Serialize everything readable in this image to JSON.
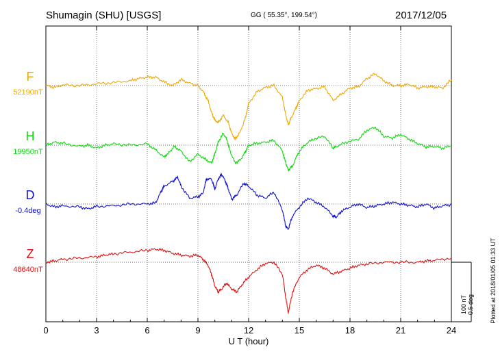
{
  "header": {
    "station": "Shumagin (SHU)  [USGS]",
    "coords": "GG ( 55.35°, 199.54°)",
    "date": "2017/12/05"
  },
  "footer": {
    "plotted": "Plotted at 2018/01/05 01:33 UT",
    "scale_nt": "100 nT",
    "scale_deg": "0.5 deg"
  },
  "chart_data": {
    "type": "line",
    "title": "Shumagin (SHU)  [USGS]",
    "xlabel": "U T (hour)",
    "ylabel": "",
    "xlim": [
      0,
      24
    ],
    "xticks": [
      0,
      3,
      6,
      9,
      12,
      15,
      18,
      21,
      24
    ],
    "grid": true,
    "scale": {
      "nT_per_bar": 100,
      "deg_per_bar": 0.5
    },
    "series": [
      {
        "name": "F",
        "baseline_label": "52190nT",
        "color": "#f0a800",
        "unit": "nT",
        "points": [
          [
            0,
            0
          ],
          [
            0.5,
            -3
          ],
          [
            1,
            1
          ],
          [
            2,
            0
          ],
          [
            3,
            3
          ],
          [
            4,
            5
          ],
          [
            5,
            8
          ],
          [
            5.5,
            12
          ],
          [
            6,
            14
          ],
          [
            6.5,
            14
          ],
          [
            7,
            6
          ],
          [
            7.5,
            0
          ],
          [
            8,
            10
          ],
          [
            8.5,
            4
          ],
          [
            9,
            0
          ],
          [
            9.3,
            -10
          ],
          [
            9.6,
            -25
          ],
          [
            9.8,
            -45
          ],
          [
            10,
            -58
          ],
          [
            10.2,
            -62
          ],
          [
            10.5,
            -50
          ],
          [
            10.8,
            -62
          ],
          [
            11,
            -80
          ],
          [
            11.2,
            -90
          ],
          [
            11.5,
            -78
          ],
          [
            11.8,
            -55
          ],
          [
            12,
            -30
          ],
          [
            12.5,
            -10
          ],
          [
            13,
            -3
          ],
          [
            13.5,
            0
          ],
          [
            14,
            -20
          ],
          [
            14.2,
            -50
          ],
          [
            14.35,
            -66
          ],
          [
            14.5,
            -55
          ],
          [
            14.8,
            -38
          ],
          [
            15,
            -25
          ],
          [
            15.5,
            -8
          ],
          [
            16,
            -5
          ],
          [
            16.5,
            -2
          ],
          [
            17,
            -25
          ],
          [
            17.5,
            -14
          ],
          [
            18,
            -4
          ],
          [
            18.5,
            -2
          ],
          [
            19,
            12
          ],
          [
            19.5,
            20
          ],
          [
            20,
            8
          ],
          [
            20.5,
            0
          ],
          [
            21,
            0
          ],
          [
            21.5,
            2
          ],
          [
            22,
            -4
          ],
          [
            22.5,
            -2
          ],
          [
            23,
            -2
          ],
          [
            23.5,
            -4
          ],
          [
            24,
            10
          ]
        ]
      },
      {
        "name": "H",
        "baseline_label": "19950nT",
        "color": "#10d810",
        "unit": "nT",
        "points": [
          [
            0,
            0
          ],
          [
            0.5,
            5
          ],
          [
            1,
            3
          ],
          [
            2,
            -2
          ],
          [
            2.5,
            0
          ],
          [
            3,
            -5
          ],
          [
            3.5,
            0
          ],
          [
            4,
            2
          ],
          [
            5,
            0
          ],
          [
            6,
            2
          ],
          [
            6.5,
            -8
          ],
          [
            7,
            -20
          ],
          [
            7.3,
            -12
          ],
          [
            7.6,
            -2
          ],
          [
            8,
            -10
          ],
          [
            8.5,
            -28
          ],
          [
            9,
            -15
          ],
          [
            9.5,
            -25
          ],
          [
            9.8,
            -30
          ],
          [
            10,
            -15
          ],
          [
            10.2,
            5
          ],
          [
            10.5,
            20
          ],
          [
            10.7,
            10
          ],
          [
            10.9,
            -10
          ],
          [
            11.2,
            -30
          ],
          [
            11.5,
            -25
          ],
          [
            11.8,
            -12
          ],
          [
            12,
            0
          ],
          [
            12.5,
            3
          ],
          [
            13,
            5
          ],
          [
            13.5,
            8
          ],
          [
            14,
            -10
          ],
          [
            14.2,
            -30
          ],
          [
            14.35,
            -42
          ],
          [
            14.6,
            -35
          ],
          [
            14.9,
            -15
          ],
          [
            15.3,
            0
          ],
          [
            15.8,
            10
          ],
          [
            16.5,
            15
          ],
          [
            17,
            -5
          ],
          [
            17.2,
            -2
          ],
          [
            17.8,
            5
          ],
          [
            18.5,
            10
          ],
          [
            19,
            25
          ],
          [
            19.5,
            30
          ],
          [
            20,
            15
          ],
          [
            20.5,
            12
          ],
          [
            21,
            18
          ],
          [
            21.5,
            10
          ],
          [
            22,
            3
          ],
          [
            22.5,
            -3
          ],
          [
            23,
            -2
          ],
          [
            23.5,
            -5
          ],
          [
            24,
            -1
          ]
        ]
      },
      {
        "name": "D",
        "baseline_label": "-0.4deg",
        "color": "#1010d0",
        "unit": "deg",
        "points": [
          [
            0,
            0
          ],
          [
            0.5,
            -5
          ],
          [
            1,
            -3
          ],
          [
            2,
            -5
          ],
          [
            2.5,
            -8
          ],
          [
            3,
            -4
          ],
          [
            4,
            -3
          ],
          [
            5,
            0
          ],
          [
            6,
            0
          ],
          [
            6.5,
            2
          ],
          [
            6.8,
            20
          ],
          [
            7,
            30
          ],
          [
            7.5,
            38
          ],
          [
            7.8,
            45
          ],
          [
            8,
            30
          ],
          [
            8.5,
            10
          ],
          [
            9,
            12
          ],
          [
            9.3,
            18
          ],
          [
            9.5,
            42
          ],
          [
            9.8,
            42
          ],
          [
            10,
            25
          ],
          [
            10.2,
            42
          ],
          [
            10.4,
            50
          ],
          [
            10.6,
            40
          ],
          [
            10.8,
            25
          ],
          [
            11,
            8
          ],
          [
            11.3,
            15
          ],
          [
            11.7,
            35
          ],
          [
            12,
            30
          ],
          [
            12.5,
            15
          ],
          [
            13,
            10
          ],
          [
            13.5,
            20
          ],
          [
            14,
            -10
          ],
          [
            14.2,
            -38
          ],
          [
            14.35,
            -42
          ],
          [
            14.6,
            -20
          ],
          [
            15,
            -5
          ],
          [
            15.5,
            10
          ],
          [
            16,
            3
          ],
          [
            16.5,
            -5
          ],
          [
            17,
            -20
          ],
          [
            17.2,
            -22
          ],
          [
            17.5,
            -12
          ],
          [
            18,
            -5
          ],
          [
            18.5,
            0
          ],
          [
            19,
            -6
          ],
          [
            19.5,
            -3
          ],
          [
            20,
            0
          ],
          [
            20.5,
            3
          ],
          [
            21,
            0
          ],
          [
            21.5,
            -2
          ],
          [
            22,
            -5
          ],
          [
            22.5,
            0
          ],
          [
            23,
            -7
          ],
          [
            23.5,
            -3
          ],
          [
            24,
            -1
          ]
        ]
      },
      {
        "name": "Z",
        "baseline_label": "48640nT",
        "color": "#e01010",
        "unit": "nT",
        "points": [
          [
            0,
            0
          ],
          [
            0.5,
            2
          ],
          [
            1,
            5
          ],
          [
            2,
            7
          ],
          [
            3,
            9
          ],
          [
            3.5,
            12
          ],
          [
            4,
            14
          ],
          [
            5,
            17
          ],
          [
            6,
            20
          ],
          [
            6.5,
            22
          ],
          [
            7,
            20
          ],
          [
            7.5,
            15
          ],
          [
            8,
            12
          ],
          [
            8.5,
            10
          ],
          [
            9,
            12
          ],
          [
            9.3,
            5
          ],
          [
            9.6,
            -5
          ],
          [
            9.8,
            -20
          ],
          [
            10,
            -40
          ],
          [
            10.2,
            -50
          ],
          [
            10.4,
            -45
          ],
          [
            10.7,
            -35
          ],
          [
            11,
            -45
          ],
          [
            11.3,
            -50
          ],
          [
            11.6,
            -38
          ],
          [
            12,
            -25
          ],
          [
            12.5,
            -12
          ],
          [
            13,
            -2
          ],
          [
            13.5,
            0
          ],
          [
            14,
            -20
          ],
          [
            14.2,
            -60
          ],
          [
            14.35,
            -85
          ],
          [
            14.6,
            -50
          ],
          [
            15,
            -25
          ],
          [
            15.5,
            -12
          ],
          [
            16,
            -5
          ],
          [
            16.5,
            -10
          ],
          [
            17,
            -20
          ],
          [
            17.5,
            -15
          ],
          [
            18,
            -10
          ],
          [
            18.5,
            -5
          ],
          [
            19,
            -3
          ],
          [
            20,
            0
          ],
          [
            21,
            0
          ],
          [
            22,
            0
          ],
          [
            22.5,
            2
          ],
          [
            23,
            3
          ],
          [
            24,
            7
          ]
        ]
      }
    ]
  }
}
